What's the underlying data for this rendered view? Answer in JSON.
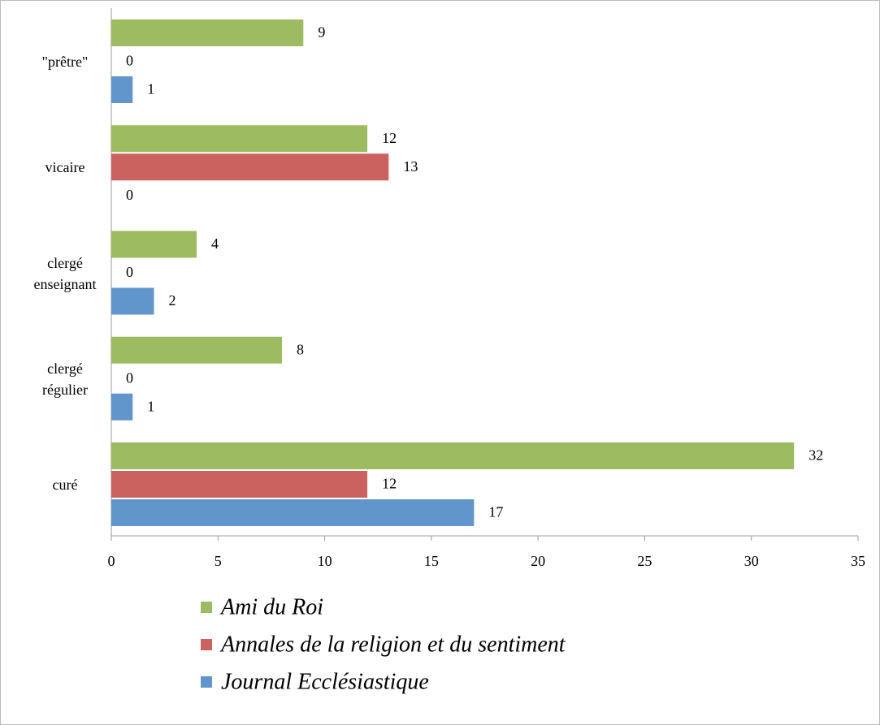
{
  "chart_data": {
    "type": "bar",
    "orientation": "horizontal",
    "categories": [
      "curé",
      "clergé régulier",
      "clergé enseignant",
      "vicaire",
      "\"prêtre\""
    ],
    "series": [
      {
        "name": "Ami du Roi",
        "color": "#9dbb61",
        "values": [
          32,
          8,
          4,
          12,
          9
        ]
      },
      {
        "name": "Annales de la religion et du sentiment",
        "color": "#cb625f",
        "values": [
          12,
          0,
          0,
          13,
          0
        ]
      },
      {
        "name": "Journal Ecclésiastique",
        "color": "#6196cc",
        "values": [
          17,
          1,
          2,
          0,
          1
        ]
      }
    ],
    "xlim": [
      0,
      35
    ],
    "xticks": [
      0,
      5,
      10,
      15,
      20,
      25,
      30,
      35
    ],
    "grid": false,
    "legend": "bottom"
  }
}
